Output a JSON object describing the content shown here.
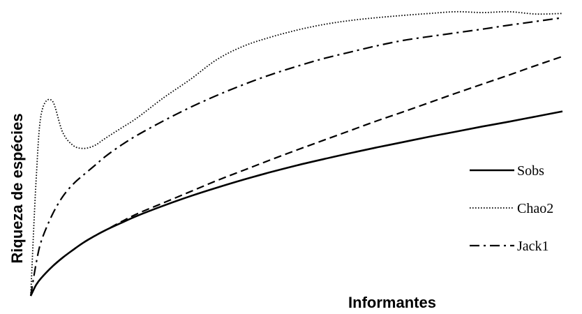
{
  "chart_data": {
    "type": "line",
    "xlabel": "Informantes",
    "ylabel": "Riqueza de espécies",
    "xlim": [
      0,
      100
    ],
    "ylim": [
      0,
      100
    ],
    "grid": false,
    "legend_position": "right",
    "x": [
      0,
      1,
      2,
      4,
      6,
      8,
      10,
      12,
      14,
      17,
      20,
      25,
      30,
      35,
      40,
      45,
      50,
      55,
      60,
      65,
      70,
      75,
      80,
      85,
      90,
      95,
      100
    ],
    "series": [
      {
        "name": "Sobs",
        "style": "solid",
        "values": [
          0,
          3.8,
          6.3,
          10.2,
          13.4,
          16.2,
          18.8,
          21.0,
          23.0,
          25.6,
          28.1,
          31.7,
          35.0,
          38.0,
          40.8,
          43.4,
          45.8,
          48.0,
          50.1,
          52.1,
          54.0,
          55.9,
          57.7,
          59.5,
          61.2,
          63.0,
          64.8
        ]
      },
      {
        "name": "Chao2",
        "style": "dotted",
        "values": [
          0,
          40,
          64,
          68.6,
          57.5,
          52.8,
          51.8,
          52.8,
          55.3,
          58.9,
          62.5,
          69.6,
          76.0,
          83.0,
          87.7,
          90.8,
          93.3,
          95.3,
          96.7,
          97.7,
          98.5,
          99.2,
          99.8,
          99.5,
          99.8,
          99.0,
          99.2
        ]
      },
      {
        "name": "Jack1",
        "style": "dashdot",
        "values": [
          0,
          11.2,
          19.3,
          28.3,
          34.8,
          39.3,
          42.6,
          45.7,
          48.9,
          52.9,
          56.4,
          61.5,
          66.2,
          70.4,
          74.2,
          77.6,
          80.6,
          83.3,
          85.6,
          87.8,
          89.7,
          91.1,
          92.4,
          93.7,
          95.1,
          96.4,
          97.7
        ]
      },
      {
        "name": "",
        "style": "dashed",
        "values": [
          0,
          3.8,
          6.3,
          10.2,
          13.4,
          16.2,
          18.8,
          21.0,
          23.0,
          26.0,
          28.8,
          32.7,
          36.6,
          40.5,
          44.1,
          47.7,
          51.2,
          54.6,
          58.0,
          61.4,
          64.6,
          67.9,
          71.2,
          74.4,
          77.6,
          80.9,
          84.1
        ]
      }
    ]
  }
}
